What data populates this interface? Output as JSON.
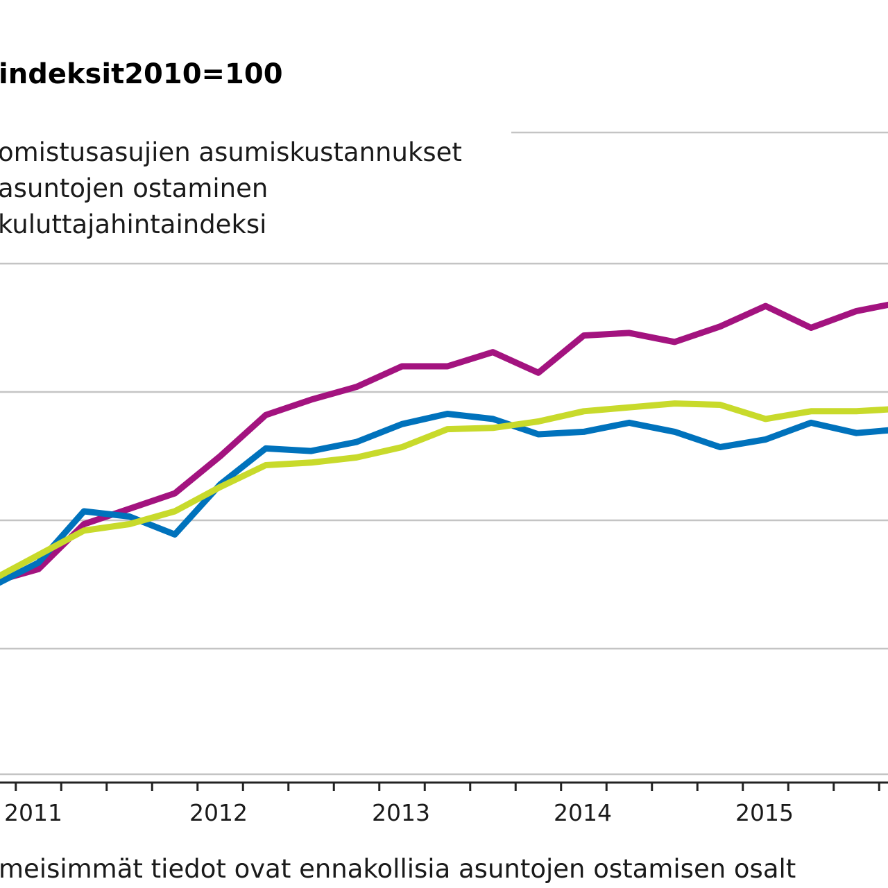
{
  "chart_data": {
    "type": "line",
    "title": "indeksit2010=100",
    "note": "meisimmät tiedot ovat ennakollisia asuntojen ostamisen osalt",
    "x_tick_labels": [
      "2011",
      "2012",
      "2013",
      "2014",
      "2015"
    ],
    "x": [
      "2010Q4",
      "2011Q1",
      "2011Q2",
      "2011Q3",
      "2011Q4",
      "2012Q1",
      "2012Q2",
      "2012Q3",
      "2012Q4",
      "2013Q1",
      "2013Q2",
      "2013Q3",
      "2013Q4",
      "2014Q1",
      "2014Q2",
      "2014Q3",
      "2014Q4",
      "2015Q1",
      "2015Q2",
      "2015Q3",
      "2015Q4"
    ],
    "grid": true,
    "series": [
      {
        "name": "omistusasujien asumiskustannukset",
        "color": "#a3137f",
        "values": [
          -24.8,
          -23.8,
          -20.3,
          -19.1,
          -17.9,
          -15.0,
          -11.8,
          -10.6,
          -9.6,
          -8.0,
          -8.0,
          -6.9,
          -8.5,
          -5.6,
          -5.4,
          -6.1,
          -4.9,
          -3.3,
          -5.0,
          -3.7,
          -3.0
        ]
      },
      {
        "name": "asuntojen ostaminen",
        "color": "#0072bc",
        "values": [
          -25.1,
          -23.3,
          -19.3,
          -19.7,
          -21.1,
          -17.2,
          -14.4,
          -14.6,
          -13.9,
          -12.5,
          -11.7,
          -12.1,
          -13.3,
          -13.1,
          -12.4,
          -13.1,
          -14.3,
          -13.7,
          -12.4,
          -13.2,
          -12.9
        ]
      },
      {
        "name": "kuluttajahintaindeksi",
        "color": "#c8da2b",
        "values": [
          -24.6,
          -22.7,
          -20.8,
          -20.3,
          -19.3,
          -17.4,
          -15.7,
          -15.5,
          -15.1,
          -14.3,
          -12.9,
          -12.8,
          -12.3,
          -11.5,
          -11.2,
          -10.9,
          -11.0,
          -12.1,
          -11.5,
          -11.5,
          -11.3
        ]
      }
    ]
  }
}
